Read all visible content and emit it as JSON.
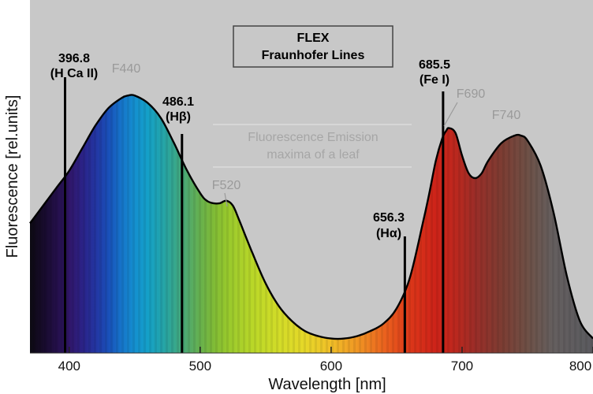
{
  "chart_data": {
    "type": "area",
    "title": "FLEX",
    "subtitle": "Fraunhofer Lines",
    "xlabel": "Wavelength [nm]",
    "ylabel": "Fluorescence [rel.units]",
    "xlim": [
      370,
      800
    ],
    "x_ticks": [
      400,
      500,
      600,
      700,
      800
    ],
    "x_tick_labels": [
      "400",
      "500",
      "600",
      "700",
      "800"
    ],
    "grid": false,
    "colors": {
      "plot_bg": "#c8c8c8",
      "outline": "#000000",
      "annotation_text": "#a6a6a6"
    },
    "curve": {
      "x": [
        370,
        380,
        390,
        400,
        410,
        420,
        430,
        440,
        445,
        450,
        460,
        470,
        480,
        490,
        500,
        505,
        510,
        515,
        520,
        525,
        530,
        540,
        550,
        560,
        570,
        580,
        590,
        600,
        610,
        620,
        630,
        640,
        650,
        660,
        670,
        675,
        680,
        685,
        688,
        690,
        695,
        700,
        705,
        710,
        715,
        720,
        730,
        740,
        745,
        750,
        760,
        770,
        780,
        790,
        800
      ],
      "y": [
        0.48,
        0.55,
        0.62,
        0.69,
        0.78,
        0.87,
        0.94,
        0.98,
        0.99,
        0.99,
        0.96,
        0.9,
        0.8,
        0.69,
        0.6,
        0.57,
        0.56,
        0.56,
        0.57,
        0.55,
        0.49,
        0.36,
        0.24,
        0.15,
        0.09,
        0.05,
        0.03,
        0.02,
        0.02,
        0.03,
        0.05,
        0.08,
        0.14,
        0.26,
        0.48,
        0.6,
        0.73,
        0.82,
        0.85,
        0.86,
        0.84,
        0.75,
        0.68,
        0.66,
        0.68,
        0.73,
        0.8,
        0.83,
        0.83,
        0.81,
        0.71,
        0.52,
        0.27,
        0.09,
        0.02
      ]
    },
    "fraunhofer_lines": [
      {
        "wavelength": 396.8,
        "label": "396.8",
        "species": "(H Ca II)"
      },
      {
        "wavelength": 486.1,
        "label": "486.1",
        "species": "(Hβ)"
      },
      {
        "wavelength": 656.3,
        "label": "656.3",
        "species": "(Hα)"
      },
      {
        "wavelength": 685.5,
        "label": "685.5",
        "species": "(Fe I)"
      }
    ],
    "peaks": [
      {
        "wavelength": 440,
        "label": "F440"
      },
      {
        "wavelength": 520,
        "label": "F520"
      },
      {
        "wavelength": 690,
        "label": "F690"
      },
      {
        "wavelength": 740,
        "label": "F740"
      }
    ],
    "annotation": [
      "Fluorescence Emission",
      "maxima of a leaf"
    ]
  }
}
